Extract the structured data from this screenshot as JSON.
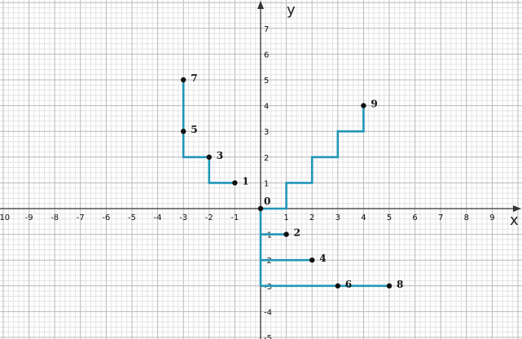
{
  "chart_data": {
    "type": "scatter",
    "xlabel": "x",
    "ylabel": "y",
    "xlim": [
      -10,
      9.8
    ],
    "ylim": [
      -5,
      7.8
    ],
    "grid": true,
    "x_ticks": [
      -10,
      -9,
      -8,
      -7,
      -6,
      -5,
      -4,
      -3,
      -2,
      -1,
      1,
      2,
      3,
      4,
      5,
      6,
      7,
      8,
      9
    ],
    "y_ticks": [
      -5,
      -4,
      -3,
      -2,
      -1,
      1,
      2,
      3,
      4,
      5,
      6,
      7
    ],
    "colors": {
      "path": "#2196b6",
      "grid_minor": "#e3e3e3",
      "grid_major": "#b8b8b8",
      "axis": "#333333",
      "point": "#111111"
    },
    "points": [
      {
        "label": "0",
        "x": 0,
        "y": 0
      },
      {
        "label": "1",
        "x": -1,
        "y": 1
      },
      {
        "label": "2",
        "x": 1,
        "y": -1
      },
      {
        "label": "3",
        "x": -2,
        "y": 2
      },
      {
        "label": "4",
        "x": 2,
        "y": -2
      },
      {
        "label": "5",
        "x": -3,
        "y": 3
      },
      {
        "label": "6",
        "x": 3,
        "y": -3
      },
      {
        "label": "7",
        "x": -3,
        "y": 5
      },
      {
        "label": "8",
        "x": 5,
        "y": -3
      },
      {
        "label": "9",
        "x": 4,
        "y": 4
      }
    ],
    "series": [
      {
        "x": [
          -1,
          -2,
          -2,
          -3,
          -3
        ],
        "y": [
          1,
          1,
          2,
          2,
          5
        ]
      },
      {
        "x": [
          0,
          1,
          1,
          2,
          2,
          3,
          3,
          4,
          4
        ],
        "y": [
          0,
          0,
          1,
          1,
          2,
          2,
          3,
          3,
          4
        ]
      },
      {
        "x": [
          0,
          0
        ],
        "y": [
          0,
          -3
        ]
      },
      {
        "x": [
          0,
          1
        ],
        "y": [
          -1,
          -1
        ]
      },
      {
        "x": [
          0,
          2
        ],
        "y": [
          -2,
          -2
        ]
      },
      {
        "x": [
          0,
          5
        ],
        "y": [
          -3,
          -3
        ]
      }
    ]
  }
}
